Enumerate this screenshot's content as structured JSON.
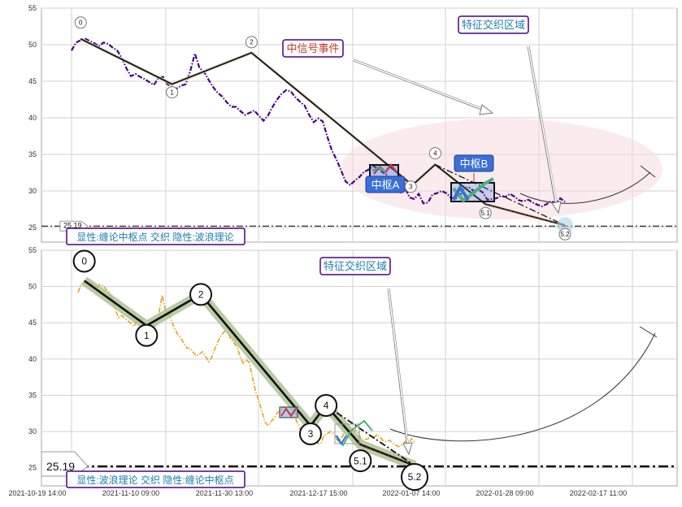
{
  "chart_data": [
    {
      "type": "line",
      "title": "",
      "xlabel": "",
      "ylabel": "",
      "ylim": [
        23,
        55
      ],
      "yticks": [
        25,
        30,
        35,
        40,
        45,
        50,
        55
      ],
      "grid": true,
      "series": [
        {
          "color": "#4b0082",
          "style": "dash-dot",
          "x": [
            0,
            0.5,
            1,
            1.5,
            2,
            2.5,
            3,
            3.5,
            4,
            4.5,
            5,
            5.5,
            6,
            6.5,
            7,
            7.5,
            8,
            8.5,
            9,
            9.5,
            10,
            10.5,
            11,
            11.5,
            12,
            12.5,
            13,
            13.5,
            14,
            14.5,
            15,
            15.5,
            16,
            16.5,
            17,
            17.5,
            18,
            18.5,
            19,
            19.5,
            20,
            20.5,
            21,
            21.5,
            22,
            22.5,
            23,
            23.5,
            24,
            24.5,
            25,
            25.5,
            26,
            26.5,
            27,
            27.5,
            28,
            28.5,
            29,
            29.5,
            30,
            30.5,
            31,
            31.5,
            32,
            32.5,
            33,
            33.5,
            34,
            34.5,
            35,
            35.5,
            36,
            36.5,
            37,
            37.5,
            38,
            38.5,
            39,
            39.5,
            40,
            40.5,
            41,
            41.5,
            42,
            42.5,
            43,
            43.5,
            44,
            44.5,
            45,
            45.5,
            46,
            46.5,
            47,
            47.5,
            48,
            48.5,
            49,
            49.5,
            50,
            50.5,
            51,
            51.5,
            52,
            52.5,
            53,
            53.5,
            54
          ],
          "values": [
            49.2,
            50.3,
            50.6,
            50.8,
            50.5,
            50.2,
            49.8,
            50.3,
            50.1,
            49.6,
            49.2,
            48.2,
            46.8,
            45.7,
            46.0,
            45.6,
            45.3,
            44.9,
            44.5,
            45.4,
            45.6,
            44.6,
            44.2,
            44.0,
            44.4,
            44.6,
            46.4,
            48.8,
            46.8,
            46.3,
            45.2,
            44.2,
            43.4,
            42.9,
            42.1,
            41.5,
            41.5,
            40.9,
            40.4,
            40.7,
            41.0,
            40.3,
            39.6,
            40.3,
            41.5,
            42.5,
            43.3,
            43.8,
            43.6,
            42.8,
            42.2,
            41.7,
            40.4,
            39.4,
            39.9,
            39.5,
            37.4,
            35.5,
            34.3,
            32.8,
            31.3,
            30.8,
            31.4,
            31.9,
            32.6,
            32.9,
            33.4,
            33.1,
            32.6,
            32.2,
            31.6,
            30.6,
            29.8,
            30.4,
            29.1,
            28.9,
            29.6,
            28.3,
            28.4,
            29.5,
            29.7,
            30.0,
            29.7,
            29.1,
            28.9,
            29.4,
            30.4,
            30.5,
            30.0,
            30.2,
            29.8,
            28.8,
            28.9,
            29.0,
            29.3,
            29.2,
            29.6,
            29.2,
            28.7,
            28.6,
            28.8,
            28.4,
            28.1,
            27.9,
            28.2,
            28.6,
            28.3,
            29.0,
            28.5
          ]
        }
      ],
      "wave_points": [
        {
          "label": "0",
          "x": 1,
          "y": 50.8
        },
        {
          "label": "1",
          "x": 11,
          "y": 44.6
        },
        {
          "label": "2",
          "x": 19.7,
          "y": 48.9
        },
        {
          "label": "3",
          "x": 37.3,
          "y": 30.8
        },
        {
          "label": "4",
          "x": 39.8,
          "y": 33.6
        },
        {
          "label": "5.1",
          "x": 45.3,
          "y": 28.2
        },
        {
          "label": "5.2",
          "x": 54,
          "y": 25.3
        }
      ],
      "hline": {
        "value": 25.19,
        "label": "25.19"
      },
      "annotations": [
        "中信号事件",
        "特征交织区域",
        "中枢A",
        "中枢B",
        "显性:缠论中枢点 交织 隐性:波浪理论"
      ]
    },
    {
      "type": "line",
      "title": "",
      "xlabel": "",
      "ylabel": "",
      "ylim": [
        22.5,
        55
      ],
      "yticks": [
        25,
        30,
        35,
        40,
        45,
        50,
        55
      ],
      "grid": true,
      "xtick_labels": [
        "2021-10-19 14:00",
        "2021-11-10 09:00",
        "2021-11-30 13:00",
        "2021-12-17 15:00",
        "2022-01-07 14:00",
        "2022-01-28 09:00",
        "2022-02-17 11:00"
      ],
      "series": [
        {
          "color": "#e8a317",
          "style": "dash-dot",
          "x": [
            0,
            0.5,
            1,
            1.5,
            2,
            2.5,
            3,
            3.5,
            4,
            4.5,
            5,
            5.5,
            6,
            6.5,
            7,
            7.5,
            8,
            8.5,
            9,
            9.5,
            10,
            10.5,
            11,
            11.5,
            12,
            12.5,
            13,
            13.5,
            14,
            14.5,
            15,
            15.5,
            16,
            16.5,
            17,
            17.5,
            18,
            18.5,
            19,
            19.5,
            20,
            20.5,
            21,
            21.5,
            22,
            22.5,
            23,
            23.5,
            24,
            24.5,
            25,
            25.5,
            26,
            26.5,
            27,
            27.5,
            28,
            28.5,
            29,
            29.5,
            30,
            30.5,
            31,
            31.5,
            32,
            32.5,
            33,
            33.5,
            34,
            34.5,
            35,
            35.5,
            36,
            36.5,
            37,
            37.5,
            38,
            38.5,
            39,
            39.5,
            40,
            40.5,
            41,
            41.5,
            42,
            42.5,
            43,
            43.5,
            44,
            44.5,
            45,
            45.5,
            46,
            46.5,
            47,
            47.5,
            48,
            48.5,
            49,
            49.5,
            50,
            50.5,
            51,
            51.5,
            52,
            52.5,
            53,
            53.5,
            54
          ],
          "values": [
            49.2,
            50.3,
            50.6,
            50.8,
            50.5,
            50.2,
            49.8,
            50.3,
            50.1,
            49.6,
            49.2,
            48.2,
            46.8,
            45.7,
            46.0,
            45.6,
            45.3,
            44.9,
            44.5,
            45.4,
            45.6,
            44.6,
            44.2,
            44.0,
            44.4,
            44.6,
            46.4,
            48.8,
            46.8,
            46.3,
            45.2,
            44.2,
            43.4,
            42.9,
            42.1,
            41.5,
            41.5,
            40.9,
            40.4,
            40.7,
            41.0,
            40.3,
            39.6,
            40.3,
            41.5,
            42.5,
            43.3,
            43.8,
            43.6,
            42.8,
            42.2,
            41.7,
            40.4,
            39.4,
            39.9,
            39.5,
            37.4,
            35.5,
            34.3,
            32.8,
            31.3,
            30.8,
            31.4,
            31.9,
            32.6,
            32.9,
            33.4,
            33.1,
            32.6,
            32.2,
            31.6,
            30.6,
            29.8,
            30.4,
            29.1,
            28.9,
            29.6,
            28.3,
            28.4,
            29.5,
            29.7,
            30.0,
            29.7,
            29.1,
            28.9,
            29.4,
            30.4,
            30.5,
            30.0,
            30.2,
            29.8,
            28.8,
            28.9,
            29.0,
            29.3,
            29.2,
            29.6,
            29.2,
            28.7,
            28.6,
            28.8,
            28.4,
            28.1,
            27.9,
            28.2,
            28.6,
            28.3,
            29.0,
            28.5
          ]
        }
      ],
      "wave_points": [
        {
          "label": "0",
          "x": 1,
          "y": 50.8
        },
        {
          "label": "1",
          "x": 11,
          "y": 44.6
        },
        {
          "label": "2",
          "x": 19.7,
          "y": 48.9
        },
        {
          "label": "3",
          "x": 37.3,
          "y": 30.8
        },
        {
          "label": "4",
          "x": 39.8,
          "y": 33.6
        },
        {
          "label": "5.1",
          "x": 45.3,
          "y": 28.2
        },
        {
          "label": "5.2",
          "x": 54,
          "y": 25.3
        }
      ],
      "hline": {
        "value": 25.19,
        "label": "25.19"
      },
      "annotations": [
        "特征交织区域",
        "显性:波浪理论 交织 隐性:缠论中枢点"
      ]
    }
  ]
}
